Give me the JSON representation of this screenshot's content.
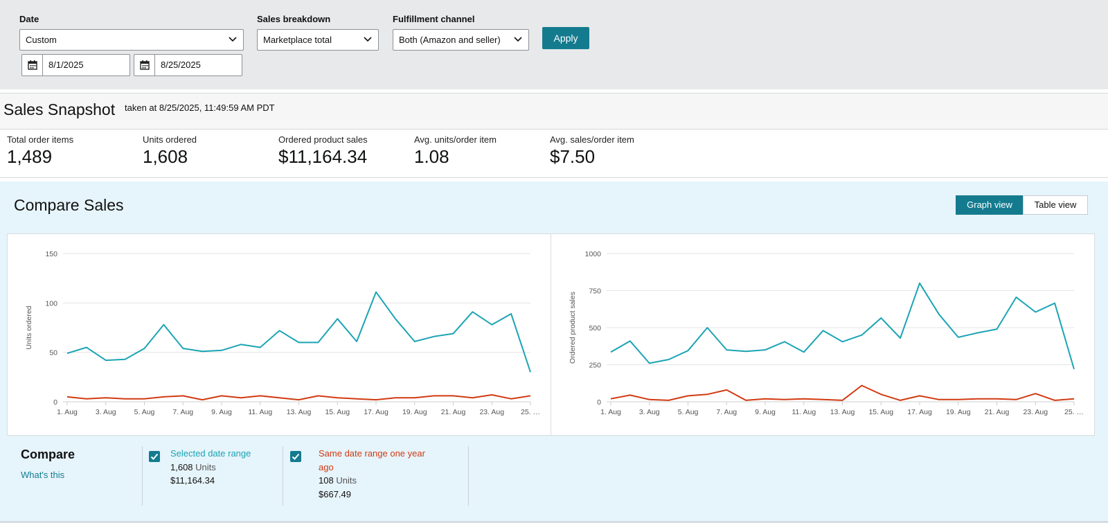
{
  "filters": {
    "date_label": "Date",
    "date_value": "Custom",
    "start_date": "8/1/2025",
    "end_date": "8/25/2025",
    "breakdown_label": "Sales breakdown",
    "breakdown_value": "Marketplace total",
    "channel_label": "Fulfillment channel",
    "channel_value": "Both (Amazon and seller)",
    "apply_label": "Apply"
  },
  "snapshot": {
    "title": "Sales Snapshot",
    "taken_at": "taken at 8/25/2025, 11:49:59 AM PDT",
    "metrics": [
      {
        "label": "Total order items",
        "value": "1,489"
      },
      {
        "label": "Units ordered",
        "value": "1,608"
      },
      {
        "label": "Ordered product sales",
        "value": "$11,164.34"
      },
      {
        "label": "Avg. units/order item",
        "value": "1.08"
      },
      {
        "label": "Avg. sales/order item",
        "value": "$7.50"
      }
    ]
  },
  "compare_sales": {
    "title": "Compare Sales",
    "graph_view_label": "Graph view",
    "table_view_label": "Table view"
  },
  "colors": {
    "accent": "#147b8f",
    "current_series": "#1ba4b4",
    "prior_series": "#d13a12"
  },
  "chart_data": [
    {
      "type": "line",
      "ylabel": "Units ordered",
      "ylim": [
        0,
        150
      ],
      "yticks": [
        0,
        50,
        100,
        150
      ],
      "x": [
        1,
        2,
        3,
        4,
        5,
        6,
        7,
        8,
        9,
        10,
        11,
        12,
        13,
        14,
        15,
        16,
        17,
        18,
        19,
        20,
        21,
        22,
        23,
        24,
        25
      ],
      "xtick_labels": [
        "1. Aug",
        "3. Aug",
        "5. Aug",
        "7. Aug",
        "9. Aug",
        "11. Aug",
        "13. Aug",
        "15. Aug",
        "17. Aug",
        "19. Aug",
        "21. Aug",
        "23. Aug",
        "25. …"
      ],
      "series": [
        {
          "values": [
            49,
            55,
            42,
            43,
            54,
            78,
            54,
            51,
            52,
            58,
            55,
            72,
            60,
            60,
            84,
            61,
            111,
            84,
            61,
            66,
            69,
            91,
            78,
            89,
            30
          ]
        },
        {
          "values": [
            5,
            3,
            4,
            3,
            3,
            5,
            6,
            2,
            6,
            4,
            6,
            4,
            2,
            6,
            4,
            3,
            2,
            4,
            4,
            6,
            6,
            4,
            7,
            3,
            6
          ]
        }
      ],
      "grid": true
    },
    {
      "type": "line",
      "ylabel": "Ordered product sales",
      "ylim": [
        0,
        1000
      ],
      "yticks": [
        0,
        250,
        500,
        750,
        1000
      ],
      "x": [
        1,
        2,
        3,
        4,
        5,
        6,
        7,
        8,
        9,
        10,
        11,
        12,
        13,
        14,
        15,
        16,
        17,
        18,
        19,
        20,
        21,
        22,
        23,
        24,
        25
      ],
      "xtick_labels": [
        "1. Aug",
        "3. Aug",
        "5. Aug",
        "7. Aug",
        "9. Aug",
        "11. Aug",
        "13. Aug",
        "15. Aug",
        "17. Aug",
        "19. Aug",
        "21. Aug",
        "23. Aug",
        "25. …"
      ],
      "series": [
        {
          "values": [
            335,
            410,
            260,
            285,
            345,
            500,
            350,
            340,
            350,
            405,
            335,
            480,
            405,
            450,
            565,
            430,
            800,
            590,
            435,
            465,
            490,
            705,
            605,
            665,
            220
          ]
        },
        {
          "values": [
            20,
            45,
            15,
            10,
            40,
            50,
            80,
            10,
            20,
            15,
            20,
            15,
            10,
            110,
            50,
            10,
            40,
            15,
            15,
            20,
            20,
            15,
            55,
            10,
            20
          ]
        }
      ],
      "grid": true
    }
  ],
  "compare": {
    "title": "Compare",
    "whats_this": "What's this",
    "selected": {
      "label": "Selected date range",
      "units_value": "1,608",
      "units_word": "Units",
      "sales": "$11,164.34"
    },
    "prior": {
      "label_line1": "Same date range one year",
      "label_line2": "ago",
      "units_value": "108",
      "units_word": "Units",
      "sales": "$667.49"
    }
  }
}
